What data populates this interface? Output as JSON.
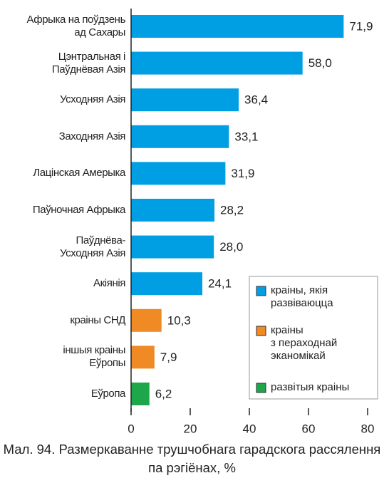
{
  "chart_data": {
    "type": "hbar",
    "title": "Мал. 94. Размеркаванне трушчобнага гарадскога рассялення па рэгіёнах, %",
    "categories": [
      "Афрыка на поўдзень\nад Сахары",
      "Цэнтральная і\nПаўднёвая Азія",
      "Усходняя Азія",
      "Заходняя Азія",
      "Лацінская Амерыка",
      "Паўночная Афрыка",
      "Паўднёва-\nУсходняя Азія",
      "Акіянія",
      "краіны СНД",
      "іншыя краіны\nЕўропы",
      "Еўропа"
    ],
    "values": [
      71.9,
      58.0,
      36.4,
      33.1,
      31.9,
      28.2,
      28.0,
      24.1,
      10.3,
      7.9,
      6.2
    ],
    "value_labels": [
      "71,9",
      "58,0",
      "36,4",
      "33,1",
      "31,9",
      "28,2",
      "28,0",
      "24,1",
      "10,3",
      "7,9",
      "6,2"
    ],
    "colors": [
      "#009fe3",
      "#009fe3",
      "#009fe3",
      "#009fe3",
      "#009fe3",
      "#009fe3",
      "#009fe3",
      "#009fe3",
      "#f08a24",
      "#f08a24",
      "#1da64a"
    ],
    "legend": [
      {
        "name": "краіны, якія\nразвіваюцца",
        "color": "#009fe3"
      },
      {
        "name": "краіны\nз пераходнай\nэканомікай",
        "color": "#f08a24"
      },
      {
        "name": "развітыя краіны",
        "color": "#1da64a"
      }
    ],
    "xlim": [
      0,
      80
    ],
    "xticks": [
      0,
      20,
      40,
      60,
      80
    ]
  }
}
